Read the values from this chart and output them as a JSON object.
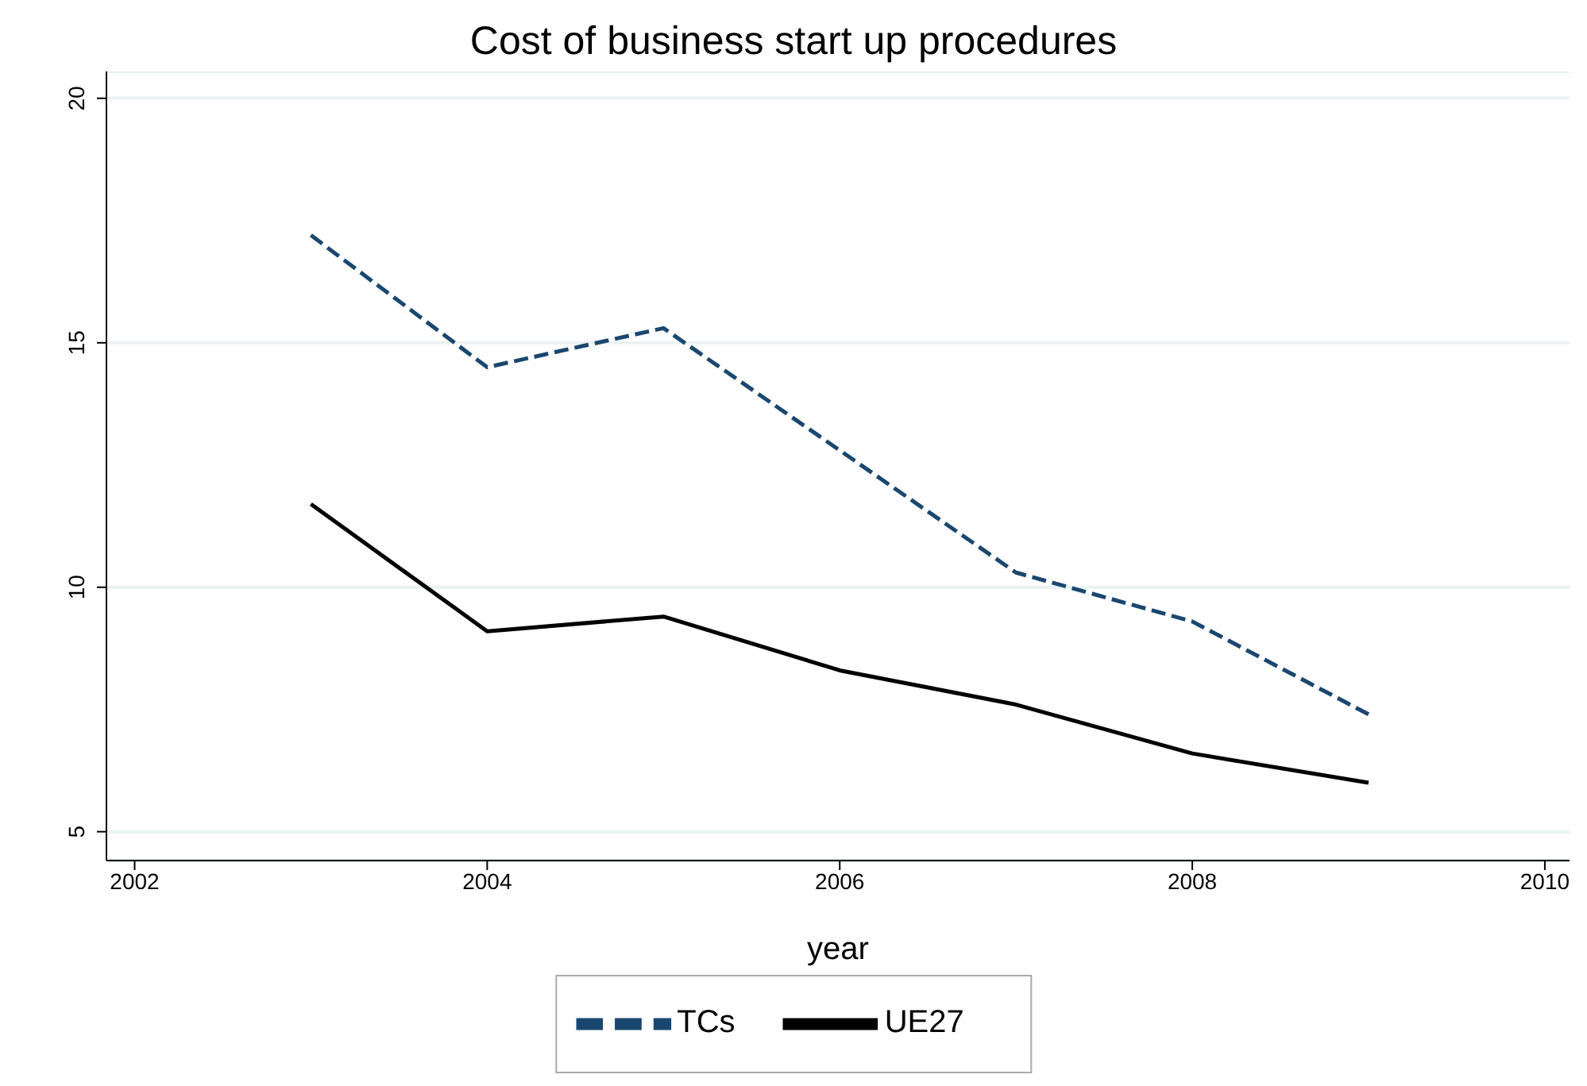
{
  "chart_data": {
    "type": "line",
    "title": "Cost of business start up procedures",
    "xlabel": "year",
    "x": [
      2003,
      2004,
      2005,
      2006,
      2007,
      2008,
      2009
    ],
    "series": [
      {
        "name": "TCs",
        "color": "#1a476f",
        "line_style": "dashed",
        "values": [
          17.2,
          14.5,
          15.3,
          12.8,
          10.3,
          9.3,
          7.4
        ]
      },
      {
        "name": "UE27",
        "color": "#000000",
        "line_style": "solid",
        "values": [
          11.7,
          9.1,
          9.4,
          8.3,
          7.6,
          6.6,
          6.0
        ]
      }
    ],
    "xlim": [
      2001.84,
      2010.14
    ],
    "xticks": [
      2002,
      2004,
      2006,
      2008,
      2010
    ],
    "ylim": [
      4.41,
      20.55
    ],
    "yticks": [
      5,
      10,
      15,
      20
    ],
    "grid": "y",
    "legend": "bottom",
    "marker": "none"
  }
}
